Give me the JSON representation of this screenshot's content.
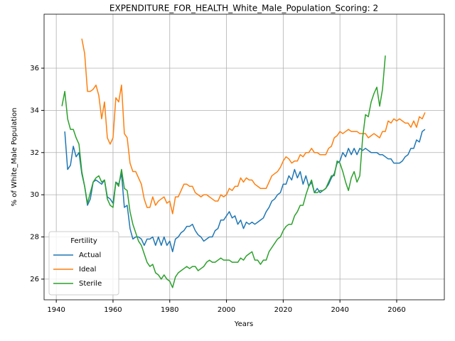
{
  "chart_data": {
    "type": "line",
    "title": "EXPENDITURE_FOR_HEALTH_White_Male_Population_Scoring: 2",
    "x_label": "Years",
    "y_label": "% of White_Male Population",
    "legend_title": "Fertility",
    "legend_position": "lower left",
    "grid": true,
    "xlim": [
      1935.7,
      2076.8
    ],
    "ylim": [
      25.02,
      38.56
    ],
    "xticks": [
      1940,
      1960,
      1980,
      2000,
      2020,
      2040,
      2060
    ],
    "yticks": [
      26,
      28,
      30,
      32,
      34,
      36
    ],
    "x": [
      1942,
      1943,
      1944,
      1945,
      1946,
      1947,
      1948,
      1949,
      1950,
      1951,
      1952,
      1953,
      1954,
      1955,
      1956,
      1957,
      1958,
      1959,
      1960,
      1961,
      1962,
      1963,
      1964,
      1965,
      1966,
      1967,
      1968,
      1969,
      1970,
      1971,
      1972,
      1973,
      1974,
      1975,
      1976,
      1977,
      1978,
      1979,
      1980,
      1981,
      1982,
      1983,
      1984,
      1985,
      1986,
      1987,
      1988,
      1989,
      1990,
      1991,
      1992,
      1993,
      1994,
      1995,
      1996,
      1997,
      1998,
      1999,
      2000,
      2001,
      2002,
      2003,
      2004,
      2005,
      2006,
      2007,
      2008,
      2009,
      2010,
      2011,
      2012,
      2013,
      2014,
      2015,
      2016,
      2017,
      2018,
      2019,
      2020,
      2021,
      2022,
      2023,
      2024,
      2025,
      2026,
      2027,
      2028,
      2029,
      2030,
      2031,
      2032,
      2033,
      2034,
      2035,
      2036,
      2037,
      2038,
      2039,
      2040,
      2041,
      2042,
      2043,
      2044,
      2045,
      2046,
      2047,
      2048,
      2049,
      2050,
      2051,
      2052,
      2053,
      2054,
      2055,
      2056,
      2057,
      2058,
      2059,
      2060,
      2061,
      2062,
      2063,
      2064,
      2065,
      2066,
      2067,
      2068,
      2069,
      2070
    ],
    "series": [
      {
        "name": "Actual",
        "color": "#1f77b4",
        "values": [
          null,
          33.0,
          31.2,
          31.4,
          32.3,
          31.8,
          32.0,
          31.0,
          30.4,
          29.5,
          29.8,
          30.6,
          30.7,
          30.6,
          30.5,
          30.7,
          29.9,
          29.8,
          29.6,
          30.6,
          30.5,
          31.0,
          29.4,
          29.5,
          28.4,
          27.9,
          28.0,
          28.0,
          27.9,
          27.6,
          27.9,
          27.9,
          28.0,
          27.6,
          28.0,
          27.6,
          28.0,
          27.6,
          27.8,
          27.3,
          27.9,
          28.0,
          28.2,
          28.3,
          28.5,
          28.5,
          28.6,
          28.3,
          28.1,
          28.0,
          27.8,
          27.9,
          28.0,
          28.0,
          28.3,
          28.4,
          28.8,
          28.8,
          29.0,
          29.2,
          28.9,
          29.0,
          28.6,
          28.8,
          28.4,
          28.7,
          28.6,
          28.7,
          28.6,
          28.7,
          28.8,
          28.9,
          29.2,
          29.4,
          29.7,
          29.8,
          30.0,
          30.1,
          30.5,
          30.5,
          30.9,
          30.7,
          31.2,
          30.8,
          31.1,
          30.5,
          30.9,
          30.4,
          30.6,
          30.1,
          30.3,
          30.1,
          30.2,
          30.3,
          30.5,
          30.8,
          31.0,
          31.5,
          31.6,
          32.0,
          31.8,
          32.2,
          31.9,
          32.2,
          31.9,
          32.2,
          32.1,
          32.2,
          32.1,
          32.0,
          32.0,
          32.0,
          31.9,
          31.9,
          31.8,
          31.7,
          31.7,
          31.5,
          31.5,
          31.5,
          31.6,
          31.8,
          31.9,
          32.2,
          32.2,
          32.6,
          32.5,
          33.0,
          33.1
        ]
      },
      {
        "name": "Ideal",
        "color": "#ff7f0e",
        "values": [
          null,
          null,
          null,
          null,
          null,
          null,
          null,
          37.4,
          36.7,
          34.9,
          34.9,
          35.0,
          35.2,
          34.7,
          33.6,
          34.4,
          32.7,
          32.4,
          32.7,
          34.6,
          34.4,
          35.2,
          32.9,
          32.7,
          31.5,
          31.1,
          31.1,
          30.8,
          30.5,
          29.8,
          29.4,
          29.4,
          29.9,
          29.5,
          29.7,
          29.8,
          29.9,
          29.6,
          29.7,
          29.1,
          29.9,
          29.9,
          30.2,
          30.5,
          30.5,
          30.4,
          30.4,
          30.1,
          30.0,
          29.9,
          30.0,
          30.0,
          29.9,
          29.8,
          29.7,
          29.7,
          30.0,
          29.9,
          30.0,
          30.3,
          30.2,
          30.4,
          30.4,
          30.8,
          30.6,
          30.8,
          30.7,
          30.7,
          30.5,
          30.4,
          30.3,
          30.3,
          30.3,
          30.6,
          30.9,
          31.0,
          31.1,
          31.3,
          31.6,
          31.8,
          31.7,
          31.5,
          31.6,
          31.6,
          31.9,
          31.8,
          32.0,
          32.0,
          32.2,
          32.0,
          32.0,
          31.9,
          31.9,
          31.9,
          32.2,
          32.3,
          32.7,
          32.8,
          33.0,
          32.9,
          33.0,
          33.1,
          33.0,
          33.0,
          33.0,
          32.9,
          32.9,
          32.9,
          32.7,
          32.8,
          32.9,
          32.8,
          32.7,
          33.0,
          33.0,
          33.5,
          33.4,
          33.6,
          33.5,
          33.6,
          33.5,
          33.4,
          33.4,
          33.2,
          33.5,
          33.2,
          33.7,
          33.6,
          33.9
        ]
      },
      {
        "name": "Sterile",
        "color": "#2ca02c",
        "values": [
          34.2,
          34.9,
          33.6,
          33.1,
          33.1,
          32.7,
          32.4,
          31.1,
          30.4,
          29.6,
          30.1,
          30.6,
          30.8,
          30.9,
          30.6,
          30.7,
          29.8,
          29.5,
          29.4,
          30.6,
          30.4,
          31.2,
          30.3,
          30.2,
          29.2,
          28.6,
          28.2,
          27.8,
          27.6,
          27.2,
          26.8,
          26.6,
          26.7,
          26.3,
          26.2,
          26.0,
          26.2,
          26.0,
          25.9,
          25.6,
          26.1,
          26.3,
          26.4,
          26.5,
          26.6,
          26.5,
          26.6,
          26.6,
          26.4,
          26.5,
          26.6,
          26.8,
          26.9,
          26.8,
          26.8,
          26.9,
          27.0,
          26.9,
          26.9,
          26.9,
          26.8,
          26.8,
          26.8,
          27.0,
          26.9,
          27.1,
          27.2,
          27.3,
          26.9,
          26.9,
          26.7,
          26.9,
          26.9,
          27.3,
          27.5,
          27.7,
          27.9,
          28.0,
          28.3,
          28.5,
          28.6,
          28.6,
          29.0,
          29.2,
          29.5,
          29.5,
          30.0,
          30.4,
          30.7,
          30.1,
          30.1,
          30.2,
          30.2,
          30.3,
          30.6,
          30.9,
          30.9,
          31.6,
          31.5,
          31.1,
          30.6,
          30.2,
          30.8,
          31.1,
          30.6,
          30.9,
          32.7,
          33.8,
          33.7,
          34.4,
          34.8,
          35.1,
          34.2,
          35.0,
          36.6,
          null,
          null,
          null,
          null,
          null,
          null,
          null,
          null,
          null,
          null,
          null,
          null,
          null,
          null
        ]
      }
    ]
  }
}
